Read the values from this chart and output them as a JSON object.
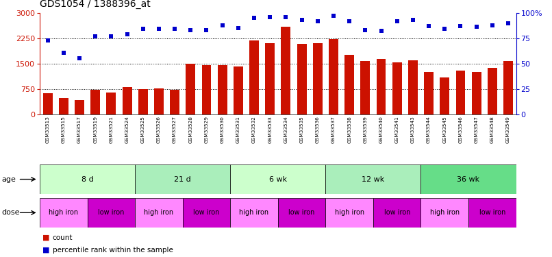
{
  "title": "GDS1054 / 1388396_at",
  "samples": [
    "GSM33513",
    "GSM33515",
    "GSM33517",
    "GSM33519",
    "GSM33521",
    "GSM33524",
    "GSM33525",
    "GSM33526",
    "GSM33527",
    "GSM33528",
    "GSM33529",
    "GSM33530",
    "GSM33531",
    "GSM33532",
    "GSM33533",
    "GSM33534",
    "GSM33535",
    "GSM33536",
    "GSM33537",
    "GSM33538",
    "GSM33539",
    "GSM33540",
    "GSM33541",
    "GSM33543",
    "GSM33544",
    "GSM33545",
    "GSM33546",
    "GSM33547",
    "GSM33548",
    "GSM33549"
  ],
  "counts": [
    620,
    480,
    430,
    730,
    640,
    800,
    750,
    760,
    720,
    1500,
    1460,
    1460,
    1420,
    2180,
    2100,
    2600,
    2090,
    2100,
    2220,
    1750,
    1580,
    1630,
    1540,
    1590,
    1260,
    1090,
    1290,
    1260,
    1380,
    1580
  ],
  "percentiles": [
    73,
    61,
    55,
    77,
    77,
    79,
    84,
    84,
    84,
    83,
    83,
    88,
    85,
    95,
    96,
    96,
    93,
    92,
    97,
    92,
    83,
    82,
    92,
    93,
    87,
    84,
    87,
    86,
    88,
    90
  ],
  "age_groups": [
    {
      "label": "8 d",
      "start": 0,
      "end": 6
    },
    {
      "label": "21 d",
      "start": 6,
      "end": 12
    },
    {
      "label": "6 wk",
      "start": 12,
      "end": 18
    },
    {
      "label": "12 wk",
      "start": 18,
      "end": 24
    },
    {
      "label": "36 wk",
      "start": 24,
      "end": 30
    }
  ],
  "dose_groups": [
    {
      "label": "high iron",
      "start": 0,
      "end": 3,
      "hi": true
    },
    {
      "label": "low iron",
      "start": 3,
      "end": 6,
      "hi": false
    },
    {
      "label": "high iron",
      "start": 6,
      "end": 9,
      "hi": true
    },
    {
      "label": "low iron",
      "start": 9,
      "end": 12,
      "hi": false
    },
    {
      "label": "high iron",
      "start": 12,
      "end": 15,
      "hi": true
    },
    {
      "label": "low iron",
      "start": 15,
      "end": 18,
      "hi": false
    },
    {
      "label": "high iron",
      "start": 18,
      "end": 21,
      "hi": true
    },
    {
      "label": "low iron",
      "start": 21,
      "end": 24,
      "hi": false
    },
    {
      "label": "high iron",
      "start": 24,
      "end": 27,
      "hi": true
    },
    {
      "label": "low iron",
      "start": 27,
      "end": 30,
      "hi": false
    }
  ],
  "bar_color": "#cc1100",
  "dot_color": "#0000cc",
  "left_ylim": [
    0,
    3000
  ],
  "right_ylim": [
    0,
    100
  ],
  "left_yticks": [
    0,
    750,
    1500,
    2250,
    3000
  ],
  "right_yticks": [
    0,
    25,
    50,
    75,
    100
  ],
  "right_yticklabels": [
    "0",
    "25",
    "50",
    "75",
    "100%"
  ],
  "age_colors": [
    "#ccffcc",
    "#aaeebb",
    "#ccffcc",
    "#aaeebb",
    "#66dd88"
  ],
  "dose_hi_color": "#ff88ff",
  "dose_lo_color": "#cc00cc",
  "xlabel_bg": "#bbbbbb",
  "bg_color": "#ffffff",
  "grid_hlines": [
    750,
    1500,
    2250
  ]
}
